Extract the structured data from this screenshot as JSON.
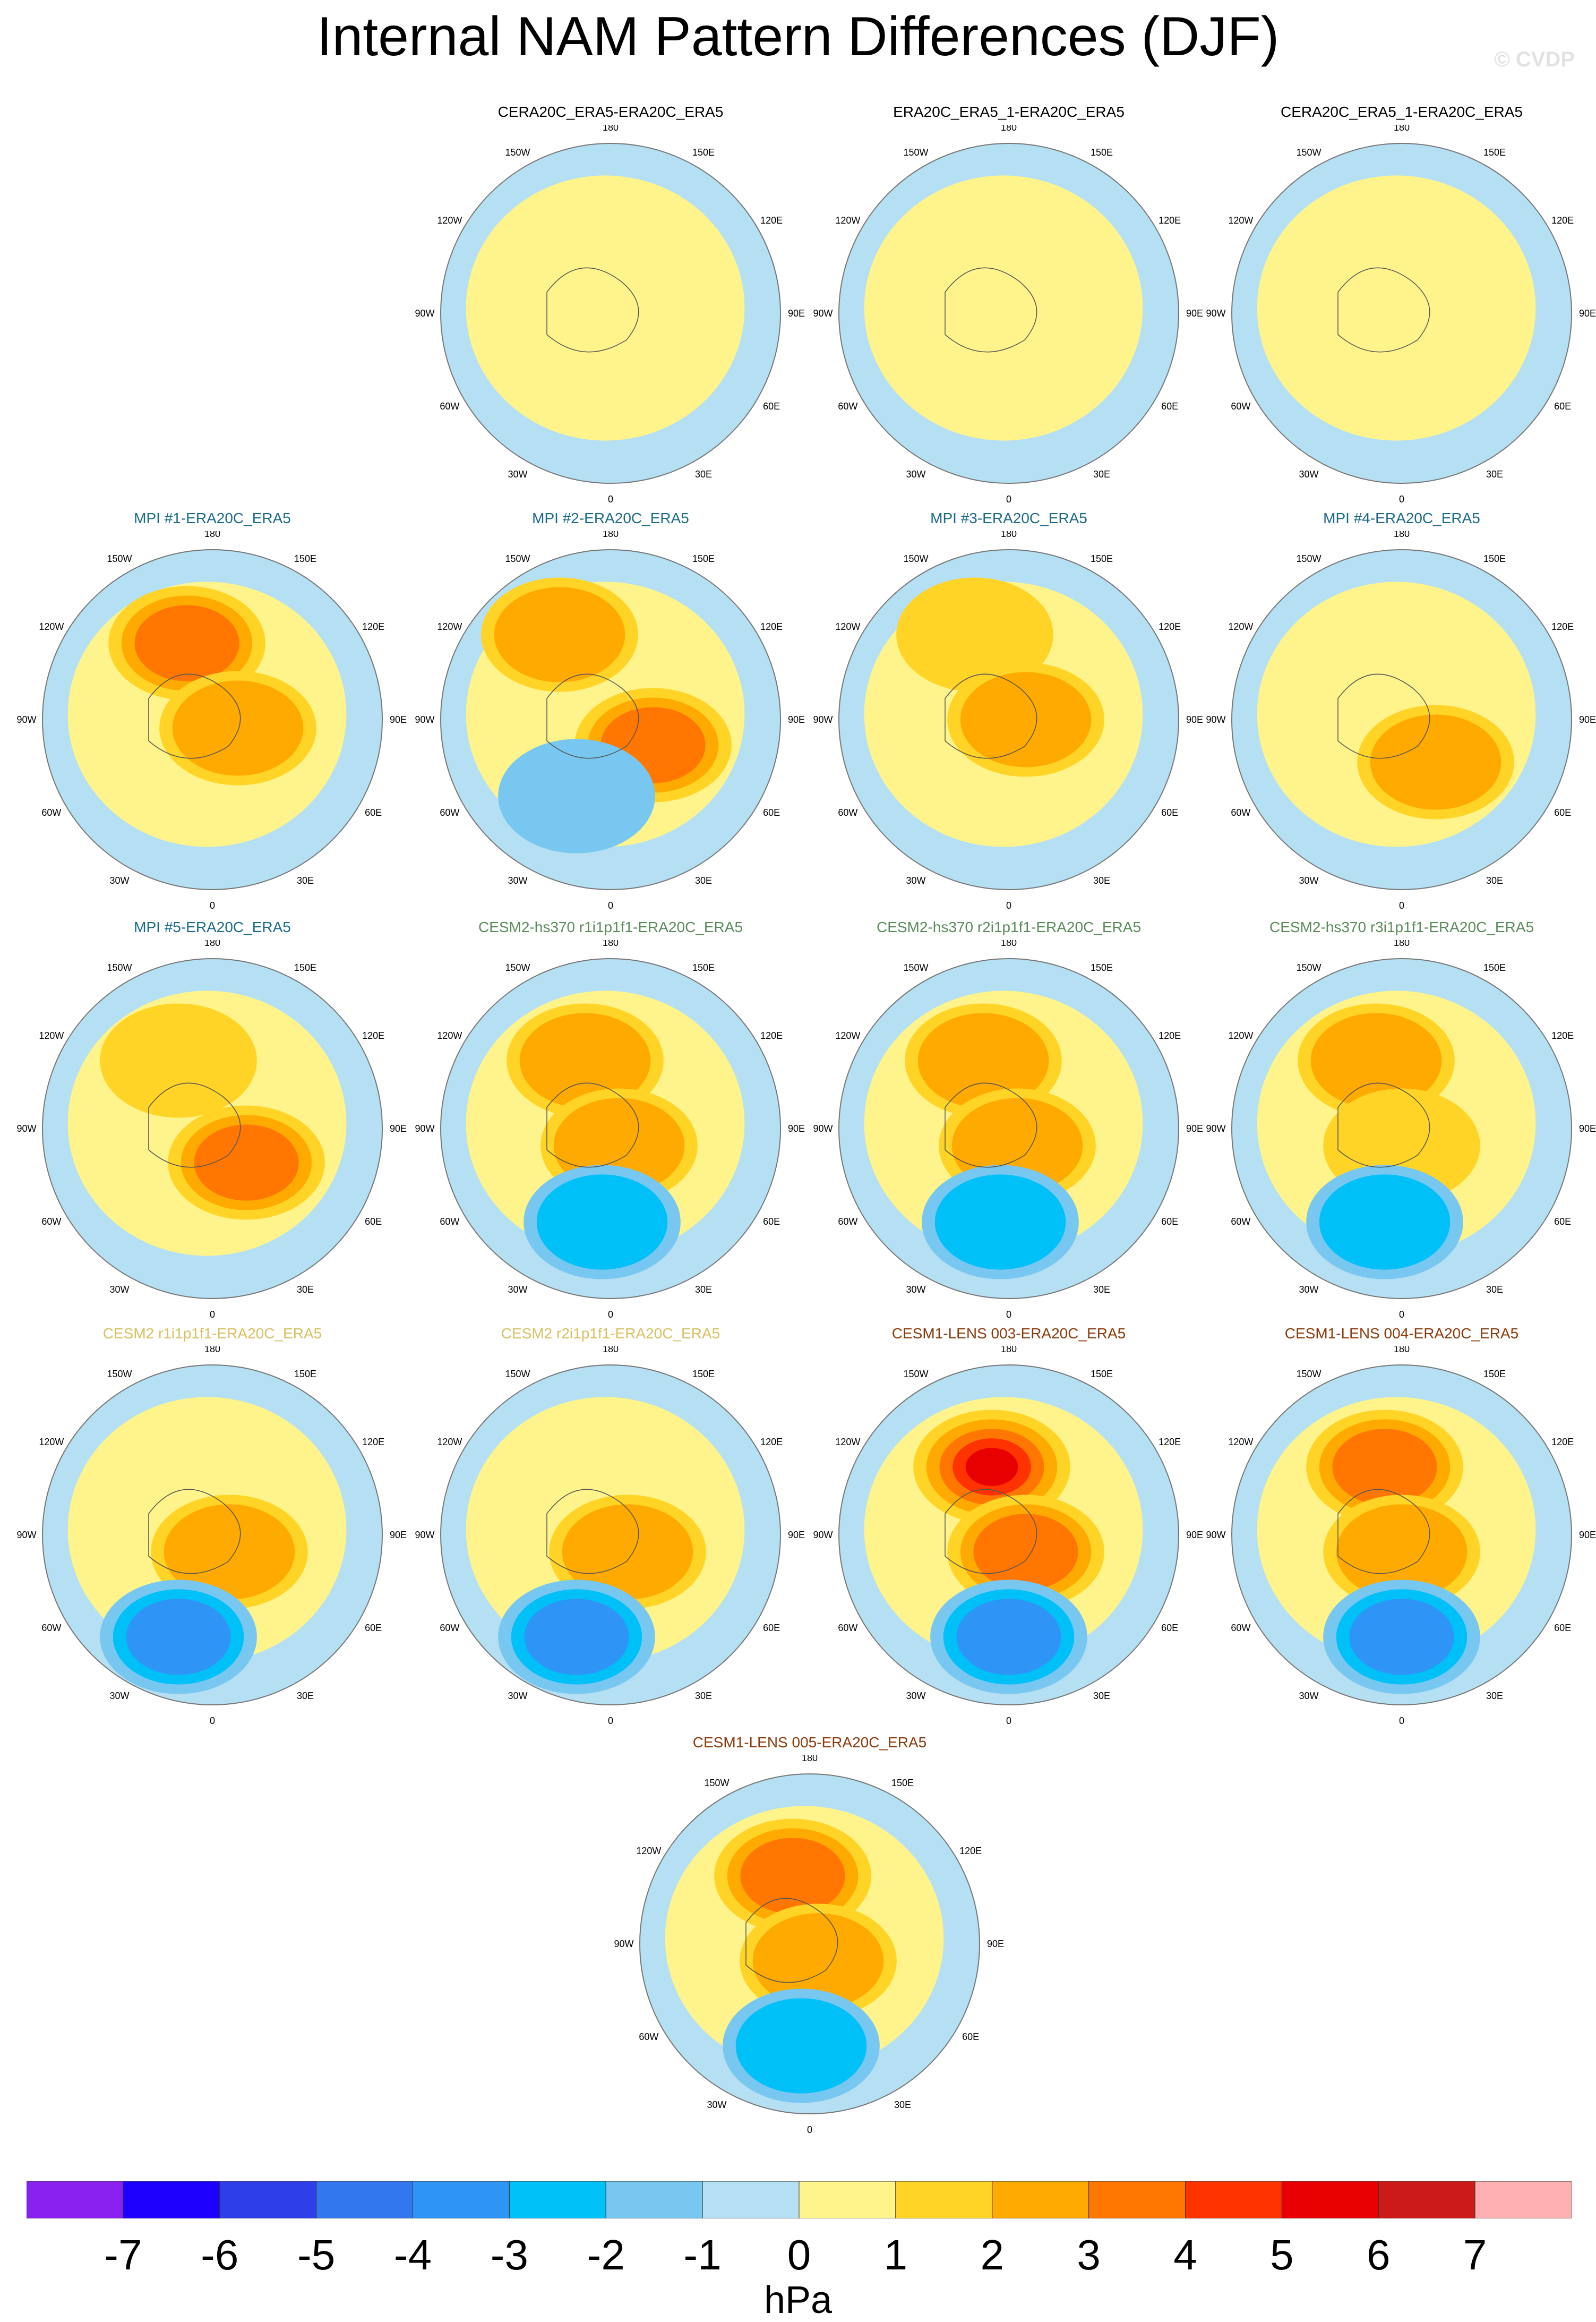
{
  "title": "Internal NAM Pattern Differences (DJF)",
  "watermark": "© CVDP",
  "lon_labels": [
    "180",
    "150E",
    "120E",
    "90E",
    "60E",
    "30E",
    "0",
    "30W",
    "60W",
    "90W",
    "120W",
    "150W"
  ],
  "colorbar": {
    "colors": [
      "#8a20f0",
      "#1e00ff",
      "#2e3ee8",
      "#3377ee",
      "#2e95f6",
      "#00c0f8",
      "#78c7f0",
      "#b5dff2",
      "#fff48c",
      "#ffd426",
      "#ffaa00",
      "#ff7700",
      "#ff3300",
      "#e80000",
      "#cc1a1a",
      "#ffb0b0"
    ],
    "tick_labels": [
      "-7",
      "-6",
      "-5",
      "-4",
      "-3",
      "-2",
      "-1",
      "0",
      "1",
      "2",
      "3",
      "4",
      "5",
      "6",
      "7"
    ],
    "unit": "hPa"
  },
  "panels": [
    {
      "title": "CERA20C_ERA5-ERA20C_ERA5",
      "title_color": "#000000",
      "row": 0,
      "col": 1,
      "blobs": []
    },
    {
      "title": "ERA20C_ERA5_1-ERA20C_ERA5",
      "title_color": "#000000",
      "row": 0,
      "col": 2,
      "blobs": []
    },
    {
      "title": "CERA20C_ERA5_1-ERA20C_ERA5",
      "title_color": "#000000",
      "row": 0,
      "col": 3,
      "blobs": []
    },
    {
      "title": "MPI #1-ERA20C_ERA5",
      "title_color": "#1a6a8a",
      "row": 1,
      "col": 0,
      "blobs": [
        {
          "dx": -0.15,
          "dy": -0.45,
          "level": 3
        },
        {
          "dx": 0.15,
          "dy": 0.05,
          "level": 2
        }
      ]
    },
    {
      "title": "MPI #2-ERA20C_ERA5",
      "title_color": "#1a6a8a",
      "row": 1,
      "col": 1,
      "blobs": [
        {
          "dx": -0.3,
          "dy": -0.5,
          "level": 2
        },
        {
          "dx": 0.25,
          "dy": 0.15,
          "level": 3
        },
        {
          "dx": -0.2,
          "dy": 0.45,
          "level": -1
        }
      ]
    },
    {
      "title": "MPI #3-ERA20C_ERA5",
      "title_color": "#1a6a8a",
      "row": 1,
      "col": 2,
      "blobs": [
        {
          "dx": -0.2,
          "dy": -0.5,
          "level": 1
        },
        {
          "dx": 0.1,
          "dy": 0.0,
          "level": 2
        }
      ]
    },
    {
      "title": "MPI #4-ERA20C_ERA5",
      "title_color": "#1a6a8a",
      "row": 1,
      "col": 3,
      "blobs": [
        {
          "dx": 0.2,
          "dy": 0.25,
          "level": 2
        }
      ]
    },
    {
      "title": "MPI #5-ERA20C_ERA5",
      "title_color": "#1a6a8a",
      "row": 2,
      "col": 0,
      "blobs": [
        {
          "dx": -0.2,
          "dy": -0.4,
          "level": 1
        },
        {
          "dx": 0.2,
          "dy": 0.2,
          "level": 3
        }
      ]
    },
    {
      "title": "CESM2-hs370 r1i1p1f1-ERA20C_ERA5",
      "title_color": "#5a8a5a",
      "row": 2,
      "col": 1,
      "blobs": [
        {
          "dx": -0.15,
          "dy": -0.4,
          "level": 2
        },
        {
          "dx": 0.05,
          "dy": 0.1,
          "level": 2
        },
        {
          "dx": -0.05,
          "dy": 0.55,
          "level": -2
        }
      ]
    },
    {
      "title": "CESM2-hs370 r2i1p1f1-ERA20C_ERA5",
      "title_color": "#5a8a5a",
      "row": 2,
      "col": 2,
      "blobs": [
        {
          "dx": -0.15,
          "dy": -0.4,
          "level": 2
        },
        {
          "dx": 0.05,
          "dy": 0.1,
          "level": 2
        },
        {
          "dx": -0.05,
          "dy": 0.55,
          "level": -2
        }
      ]
    },
    {
      "title": "CESM2-hs370 r3i1p1f1-ERA20C_ERA5",
      "title_color": "#5a8a5a",
      "row": 2,
      "col": 3,
      "blobs": [
        {
          "dx": -0.15,
          "dy": -0.4,
          "level": 2
        },
        {
          "dx": 0.0,
          "dy": 0.1,
          "level": 1
        },
        {
          "dx": -0.1,
          "dy": 0.55,
          "level": -2
        }
      ]
    },
    {
      "title": "CESM2 r1i1p1f1-ERA20C_ERA5",
      "title_color": "#d8c060",
      "row": 3,
      "col": 0,
      "blobs": [
        {
          "dx": 0.1,
          "dy": 0.1,
          "level": 2
        },
        {
          "dx": -0.2,
          "dy": 0.6,
          "level": -3
        }
      ]
    },
    {
      "title": "CESM2 r2i1p1f1-ERA20C_ERA5",
      "title_color": "#d8c060",
      "row": 3,
      "col": 1,
      "blobs": [
        {
          "dx": 0.1,
          "dy": 0.1,
          "level": 2
        },
        {
          "dx": -0.2,
          "dy": 0.6,
          "level": -3
        }
      ]
    },
    {
      "title": "CESM1-LENS 003-ERA20C_ERA5",
      "title_color": "#8b3a0a",
      "row": 3,
      "col": 2,
      "blobs": [
        {
          "dx": -0.1,
          "dy": -0.4,
          "level": 5
        },
        {
          "dx": 0.1,
          "dy": 0.1,
          "level": 3
        },
        {
          "dx": 0.0,
          "dy": 0.6,
          "level": -3
        }
      ]
    },
    {
      "title": "CESM1-LENS 004-ERA20C_ERA5",
      "title_color": "#8b3a0a",
      "row": 3,
      "col": 3,
      "blobs": [
        {
          "dx": -0.1,
          "dy": -0.4,
          "level": 3
        },
        {
          "dx": 0.0,
          "dy": 0.1,
          "level": 2
        },
        {
          "dx": 0.0,
          "dy": 0.6,
          "level": -3
        }
      ]
    },
    {
      "title": "CESM1-LENS 005-ERA20C_ERA5",
      "title_color": "#8b3a0a",
      "row": 4,
      "col": 1.5,
      "blobs": [
        {
          "dx": -0.1,
          "dy": -0.4,
          "level": 3
        },
        {
          "dx": 0.05,
          "dy": 0.1,
          "level": 2
        },
        {
          "dx": -0.05,
          "dy": 0.6,
          "level": -2
        }
      ]
    }
  ]
}
